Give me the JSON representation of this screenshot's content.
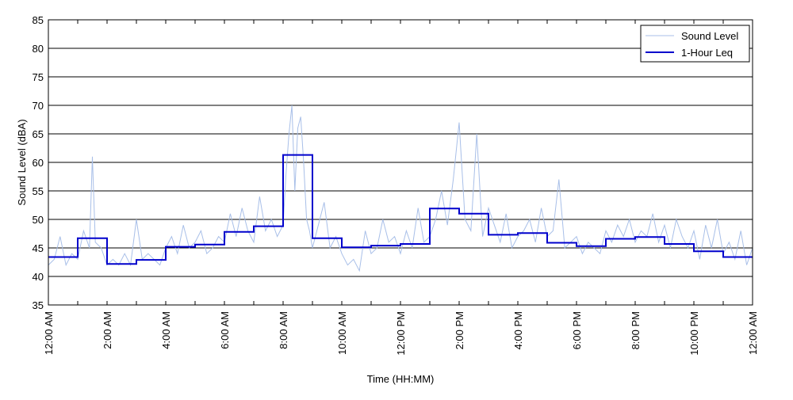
{
  "chart_data": {
    "type": "line",
    "title": "",
    "xlabel": "Time (HH:MM)",
    "ylabel": "Sound Level (dBA)",
    "ylim": [
      35,
      85
    ],
    "yticks": [
      35,
      40,
      45,
      50,
      55,
      60,
      65,
      70,
      75,
      80,
      85
    ],
    "xlim_hours": [
      0,
      24
    ],
    "xtick_labels": [
      "12:00 AM",
      "2:00 AM",
      "4:00 AM",
      "6:00 AM",
      "8:00 AM",
      "10:00 AM",
      "12:00 PM",
      "2:00 PM",
      "4:00 PM",
      "6:00 PM",
      "8:00 PM",
      "10:00 PM",
      "12:00 AM"
    ],
    "grid": "horizontal",
    "legend": "top-right",
    "series": [
      {
        "name": "Sound Level",
        "color": "#a8bfe8",
        "x": [
          0,
          0.2,
          0.4,
          0.6,
          0.8,
          1.0,
          1.2,
          1.4,
          1.5,
          1.6,
          1.8,
          2.0,
          2.2,
          2.4,
          2.6,
          2.8,
          3.0,
          3.2,
          3.4,
          3.6,
          3.8,
          4.0,
          4.2,
          4.4,
          4.6,
          4.8,
          5.0,
          5.2,
          5.4,
          5.6,
          5.8,
          6.0,
          6.2,
          6.4,
          6.6,
          6.8,
          7.0,
          7.2,
          7.4,
          7.6,
          7.8,
          8.0,
          8.1,
          8.2,
          8.3,
          8.4,
          8.5,
          8.6,
          8.7,
          8.8,
          8.9,
          9.0,
          9.2,
          9.4,
          9.6,
          9.8,
          10.0,
          10.2,
          10.4,
          10.6,
          10.8,
          11.0,
          11.2,
          11.4,
          11.6,
          11.8,
          12.0,
          12.2,
          12.4,
          12.6,
          12.8,
          13.0,
          13.2,
          13.4,
          13.6,
          13.8,
          14.0,
          14.2,
          14.4,
          14.6,
          14.8,
          15.0,
          15.2,
          15.4,
          15.6,
          15.8,
          16.0,
          16.2,
          16.4,
          16.6,
          16.8,
          17.0,
          17.2,
          17.4,
          17.6,
          17.8,
          18.0,
          18.2,
          18.4,
          18.6,
          18.8,
          19.0,
          19.2,
          19.4,
          19.6,
          19.8,
          20.0,
          20.2,
          20.4,
          20.6,
          20.8,
          21.0,
          21.2,
          21.4,
          21.6,
          21.8,
          22.0,
          22.2,
          22.4,
          22.6,
          22.8,
          23.0,
          23.2,
          23.4,
          23.6,
          23.8,
          24.0
        ],
        "values": [
          42,
          43,
          47,
          42,
          44,
          43,
          48,
          45,
          61,
          46,
          45,
          42,
          43,
          42,
          44,
          42,
          50,
          43,
          44,
          43,
          42,
          45,
          47,
          44,
          49,
          45,
          46,
          48,
          44,
          45,
          47,
          46,
          51,
          47,
          52,
          48,
          46,
          54,
          48,
          50,
          47,
          49,
          58,
          65,
          70,
          55,
          66,
          68,
          60,
          50,
          48,
          45,
          49,
          53,
          45,
          47,
          44,
          42,
          43,
          41,
          48,
          44,
          45,
          50,
          46,
          47,
          44,
          48,
          45,
          52,
          46,
          47,
          50,
          55,
          49,
          57,
          67,
          50,
          48,
          65,
          47,
          52,
          49,
          46,
          51,
          45,
          47,
          48,
          50,
          46,
          52,
          47,
          48,
          57,
          45,
          46,
          47,
          44,
          46,
          45,
          44,
          48,
          46,
          49,
          47,
          50,
          46,
          48,
          47,
          51,
          46,
          49,
          45,
          50,
          47,
          45,
          48,
          43,
          49,
          45,
          50,
          44,
          46,
          43,
          48,
          42,
          45
        ]
      },
      {
        "name": "1-Hour Leq",
        "color": "#0000cc",
        "step_start_hours": [
          0,
          1,
          2,
          3,
          4,
          5,
          6,
          7,
          8,
          9,
          10,
          11,
          12,
          13,
          14,
          15,
          16,
          17,
          18,
          19,
          20,
          21,
          22,
          23
        ],
        "values": [
          43.4,
          46.7,
          42.2,
          42.9,
          45.2,
          45.6,
          47.8,
          48.8,
          61.3,
          46.7,
          45.1,
          45.4,
          45.7,
          51.9,
          51.0,
          47.3,
          47.6,
          45.9,
          45.3,
          46.6,
          46.9,
          45.7,
          44.4,
          43.4
        ]
      }
    ]
  }
}
